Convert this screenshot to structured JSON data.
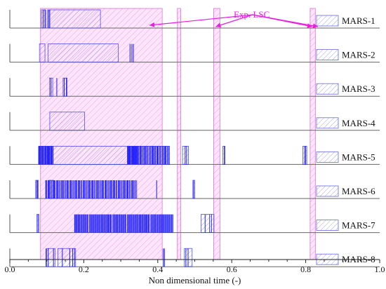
{
  "chart_data": {
    "type": "timeline",
    "xlabel": "Non dimensional time (-)",
    "xlim": [
      0.0,
      1.0
    ],
    "xticks": [
      "0.0",
      "0.2",
      "0.4",
      "0.6",
      "0.8",
      "1.0"
    ],
    "annotation": "Exp. LSC",
    "annotation_color": "#e91ee0",
    "event_color": "#1a1aff",
    "experimental_lsc_intervals": [
      [
        0.083,
        0.412
      ],
      [
        0.453,
        0.462
      ],
      [
        0.551,
        0.568
      ],
      [
        0.812,
        0.826
      ]
    ],
    "series": [
      {
        "name": "MARS-1",
        "blocks": [
          [
            0.085,
            0.097
          ],
          [
            0.102,
            0.245
          ]
        ],
        "spikes": [
          0.09,
          0.095,
          0.105,
          0.108
        ]
      },
      {
        "name": "MARS-2",
        "blocks": [
          [
            0.08,
            0.095
          ],
          [
            0.103,
            0.293
          ]
        ],
        "spikes": [
          0.325,
          0.33,
          0.334
        ]
      },
      {
        "name": "MARS-3",
        "blocks": [
          [
            0.107,
            0.116
          ],
          [
            0.144,
            0.155
          ]
        ],
        "spikes": [
          0.111,
          0.127,
          0.147,
          0.153
        ]
      },
      {
        "name": "MARS-4",
        "blocks": [
          [
            0.108,
            0.202
          ]
        ],
        "spikes": []
      },
      {
        "name": "MARS-5",
        "blocks": [
          [
            0.078,
            0.325
          ],
          [
            0.325,
            0.432
          ],
          [
            0.467,
            0.483
          ],
          [
            0.576,
            0.582
          ],
          [
            0.792,
            0.803
          ]
        ],
        "dense": [
          [
            0.078,
            0.118,
            28
          ],
          [
            0.318,
            0.345,
            20
          ],
          [
            0.345,
            0.432,
            40
          ]
        ],
        "spikes": [
          0.474,
          0.478,
          0.58,
          0.797,
          0.8
        ]
      },
      {
        "name": "MARS-6",
        "blocks": [
          [
            0.07,
            0.077
          ],
          [
            0.105,
            0.118
          ],
          [
            0.495,
            0.5
          ]
        ],
        "dense": [
          [
            0.097,
            0.345,
            110
          ]
        ],
        "spikes": [
          0.072,
          0.075,
          0.397,
          0.497
        ]
      },
      {
        "name": "MARS-7",
        "blocks": [
          [
            0.073,
            0.079
          ],
          [
            0.517,
            0.54
          ],
          [
            0.54,
            0.552
          ]
        ],
        "dense": [
          [
            0.175,
            0.443,
            140
          ]
        ],
        "spikes": [
          0.076,
          0.528,
          0.545
        ]
      },
      {
        "name": "MARS-8",
        "blocks": [
          [
            0.1,
            0.122
          ],
          [
            0.13,
            0.178
          ],
          [
            0.472,
            0.493
          ]
        ],
        "spikes": [
          0.098,
          0.104,
          0.118,
          0.142,
          0.162,
          0.17,
          0.175,
          0.415,
          0.418,
          0.476,
          0.482
        ]
      }
    ]
  }
}
